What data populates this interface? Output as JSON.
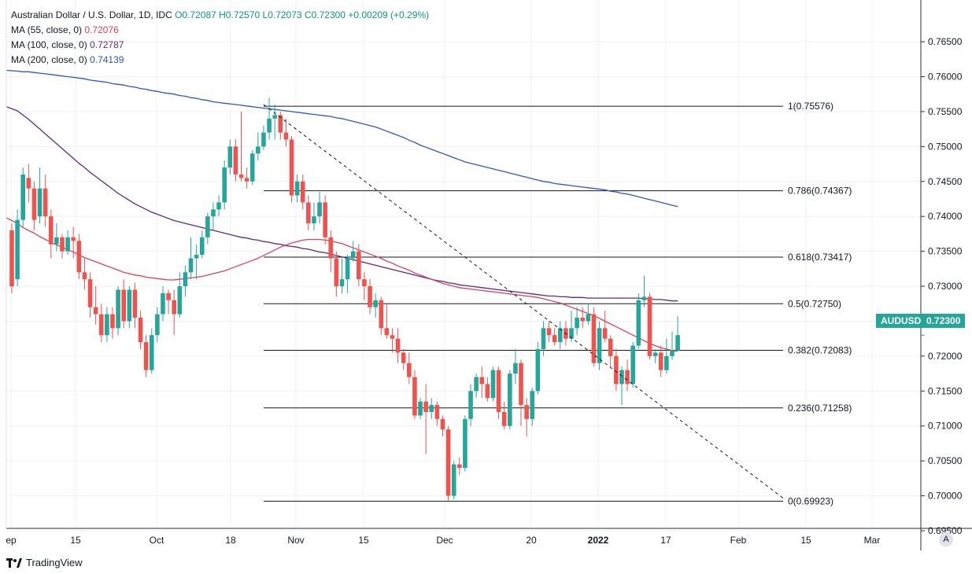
{
  "header": {
    "symbol": "Australian Dollar / U.S. Dollar, 1D, IDC",
    "open": "O0.72087",
    "high": "H0.72570",
    "low": "L0.72073",
    "close": "C0.72300",
    "change": "+0.00209 (+0.29%)"
  },
  "indicators": [
    {
      "label": "MA (55, close, 0)",
      "value": "0.72076",
      "color": "#e0405a"
    },
    {
      "label": "MA (100, close, 0)",
      "value": "0.72787",
      "color": "#5b2a86"
    },
    {
      "label": "MA (200, close, 0)",
      "value": "0.74139",
      "color": "#2f55c9"
    }
  ],
  "price_tag": {
    "symbol": "AUDUSD",
    "value": "0.72300"
  },
  "auto_button": "A",
  "branding": "TradingView",
  "colors": {
    "up": "#26a69a",
    "down": "#ef5350",
    "grid": "#eef0f4",
    "axis": "#787b86"
  },
  "chart_data": {
    "type": "candlestick",
    "title": "Australian Dollar / U.S. Dollar, 1D, IDC",
    "ylim": [
      0.692,
      0.769
    ],
    "y_ticks": [
      "0.76500",
      "0.76000",
      "0.75500",
      "0.75000",
      "0.74500",
      "0.74000",
      "0.73500",
      "0.73000",
      "0.72500",
      "0.72000",
      "0.71500",
      "0.71000",
      "0.70500",
      "0.70000",
      "0.69500"
    ],
    "x_ticks": [
      "ep",
      "15",
      "Oct",
      "18",
      "Nov",
      "15",
      "Dec",
      "20",
      "2022",
      "17",
      "Feb",
      "15",
      "Mar"
    ],
    "fib_levels": [
      {
        "label": "1(0.75576)",
        "value": 0.75576
      },
      {
        "label": "0.786(0.74367)",
        "value": 0.74367
      },
      {
        "label": "0.618(0.73417)",
        "value": 0.73417
      },
      {
        "label": "0.5(0.72750)",
        "value": 0.7275
      },
      {
        "label": "0.382(0.72083)",
        "value": 0.72083
      },
      {
        "label": "0.236(0.71258)",
        "value": 0.71258
      },
      {
        "label": "0(0.69923)",
        "value": 0.69923
      }
    ],
    "trendline": {
      "start": 0.756,
      "end": 0.6995
    },
    "candles": [
      [
        0.738,
        0.73,
        0.739,
        0.729
      ],
      [
        0.731,
        0.7395,
        0.741,
        0.73
      ],
      [
        0.7395,
        0.746,
        0.747,
        0.7385
      ],
      [
        0.7455,
        0.744,
        0.7475,
        0.742
      ],
      [
        0.744,
        0.7395,
        0.745,
        0.738
      ],
      [
        0.74,
        0.744,
        0.747,
        0.739
      ],
      [
        0.744,
        0.74,
        0.746,
        0.7385
      ],
      [
        0.74,
        0.736,
        0.741,
        0.734
      ],
      [
        0.736,
        0.737,
        0.739,
        0.735
      ],
      [
        0.737,
        0.735,
        0.7375,
        0.734
      ],
      [
        0.735,
        0.737,
        0.738,
        0.7345
      ],
      [
        0.737,
        0.7365,
        0.7385,
        0.734
      ],
      [
        0.7365,
        0.732,
        0.7375,
        0.731
      ],
      [
        0.732,
        0.731,
        0.734,
        0.7295
      ],
      [
        0.731,
        0.727,
        0.732,
        0.7255
      ],
      [
        0.727,
        0.726,
        0.73,
        0.7245
      ],
      [
        0.726,
        0.723,
        0.7275,
        0.722
      ],
      [
        0.723,
        0.726,
        0.727,
        0.722
      ],
      [
        0.726,
        0.724,
        0.727,
        0.7225
      ],
      [
        0.724,
        0.7295,
        0.73,
        0.723
      ],
      [
        0.7295,
        0.725,
        0.731,
        0.724
      ],
      [
        0.725,
        0.7295,
        0.73,
        0.724
      ],
      [
        0.7295,
        0.7255,
        0.7305,
        0.724
      ],
      [
        0.7255,
        0.722,
        0.7265,
        0.721
      ],
      [
        0.722,
        0.718,
        0.723,
        0.717
      ],
      [
        0.718,
        0.723,
        0.724,
        0.7175
      ],
      [
        0.723,
        0.726,
        0.727,
        0.722
      ],
      [
        0.726,
        0.729,
        0.73,
        0.725
      ],
      [
        0.729,
        0.728,
        0.7295,
        0.726
      ],
      [
        0.728,
        0.726,
        0.7295,
        0.723
      ],
      [
        0.726,
        0.73,
        0.732,
        0.7255
      ],
      [
        0.73,
        0.732,
        0.733,
        0.7285
      ],
      [
        0.732,
        0.734,
        0.737,
        0.731
      ],
      [
        0.734,
        0.7345,
        0.736,
        0.731
      ],
      [
        0.7345,
        0.737,
        0.738,
        0.734
      ],
      [
        0.737,
        0.74,
        0.7405,
        0.736
      ],
      [
        0.74,
        0.741,
        0.742,
        0.738
      ],
      [
        0.741,
        0.742,
        0.743,
        0.74
      ],
      [
        0.742,
        0.747,
        0.748,
        0.741
      ],
      [
        0.747,
        0.75,
        0.751,
        0.746
      ],
      [
        0.75,
        0.746,
        0.751,
        0.745
      ],
      [
        0.746,
        0.7455,
        0.755,
        0.745
      ],
      [
        0.7455,
        0.745,
        0.747,
        0.744
      ],
      [
        0.745,
        0.749,
        0.7495,
        0.7445
      ],
      [
        0.749,
        0.75,
        0.752,
        0.748
      ],
      [
        0.75,
        0.752,
        0.753,
        0.7495
      ],
      [
        0.752,
        0.754,
        0.757,
        0.751
      ],
      [
        0.754,
        0.7545,
        0.756,
        0.751
      ],
      [
        0.7545,
        0.752,
        0.755,
        0.751
      ],
      [
        0.752,
        0.751,
        0.754,
        0.75
      ],
      [
        0.751,
        0.743,
        0.7515,
        0.742
      ],
      [
        0.743,
        0.745,
        0.746,
        0.742
      ],
      [
        0.745,
        0.742,
        0.746,
        0.741
      ],
      [
        0.742,
        0.739,
        0.743,
        0.738
      ],
      [
        0.739,
        0.74,
        0.742,
        0.738
      ],
      [
        0.74,
        0.742,
        0.7435,
        0.739
      ],
      [
        0.742,
        0.737,
        0.743,
        0.736
      ],
      [
        0.737,
        0.734,
        0.738,
        0.732
      ],
      [
        0.734,
        0.73,
        0.735,
        0.7285
      ],
      [
        0.73,
        0.731,
        0.734,
        0.729
      ],
      [
        0.731,
        0.734,
        0.7345,
        0.729
      ],
      [
        0.734,
        0.735,
        0.7365,
        0.7335
      ],
      [
        0.735,
        0.731,
        0.736,
        0.73
      ],
      [
        0.731,
        0.73,
        0.732,
        0.728
      ],
      [
        0.73,
        0.727,
        0.731,
        0.726
      ],
      [
        0.727,
        0.728,
        0.729,
        0.7255
      ],
      [
        0.728,
        0.724,
        0.7285,
        0.723
      ],
      [
        0.724,
        0.723,
        0.7275,
        0.7225
      ],
      [
        0.723,
        0.7225,
        0.724,
        0.7205
      ],
      [
        0.7225,
        0.7205,
        0.724,
        0.719
      ],
      [
        0.7205,
        0.719,
        0.721,
        0.718
      ],
      [
        0.719,
        0.717,
        0.7205,
        0.716
      ],
      [
        0.717,
        0.7115,
        0.718,
        0.711
      ],
      [
        0.7115,
        0.7135,
        0.714,
        0.711
      ],
      [
        0.7135,
        0.712,
        0.716,
        0.706
      ],
      [
        0.712,
        0.713,
        0.714,
        0.711
      ],
      [
        0.713,
        0.711,
        0.7135,
        0.71
      ],
      [
        0.711,
        0.7095,
        0.7115,
        0.7085
      ],
      [
        0.7095,
        0.7,
        0.71,
        0.6992
      ],
      [
        0.7,
        0.7045,
        0.705,
        0.6995
      ],
      [
        0.7045,
        0.704,
        0.7055,
        0.703
      ],
      [
        0.704,
        0.711,
        0.7115,
        0.7035
      ],
      [
        0.711,
        0.715,
        0.716,
        0.71
      ],
      [
        0.715,
        0.717,
        0.7175,
        0.714
      ],
      [
        0.717,
        0.716,
        0.7185,
        0.714
      ],
      [
        0.716,
        0.714,
        0.717,
        0.7135
      ],
      [
        0.714,
        0.718,
        0.7185,
        0.7135
      ],
      [
        0.718,
        0.712,
        0.7185,
        0.711
      ],
      [
        0.712,
        0.71,
        0.7135,
        0.7095
      ],
      [
        0.71,
        0.7175,
        0.718,
        0.7095
      ],
      [
        0.7175,
        0.719,
        0.721,
        0.716
      ],
      [
        0.719,
        0.713,
        0.7195,
        0.71
      ],
      [
        0.713,
        0.711,
        0.714,
        0.7085
      ],
      [
        0.711,
        0.715,
        0.7155,
        0.71
      ],
      [
        0.715,
        0.721,
        0.722,
        0.7145
      ],
      [
        0.721,
        0.724,
        0.725,
        0.72
      ],
      [
        0.724,
        0.723,
        0.725,
        0.722
      ],
      [
        0.723,
        0.722,
        0.724,
        0.7215
      ],
      [
        0.722,
        0.724,
        0.725,
        0.721
      ],
      [
        0.724,
        0.7225,
        0.725,
        0.7215
      ],
      [
        0.7225,
        0.724,
        0.7265,
        0.722
      ],
      [
        0.724,
        0.7255,
        0.727,
        0.723
      ],
      [
        0.7255,
        0.725,
        0.727,
        0.724
      ],
      [
        0.725,
        0.726,
        0.7275,
        0.7245
      ],
      [
        0.726,
        0.719,
        0.727,
        0.7185
      ],
      [
        0.719,
        0.724,
        0.725,
        0.718
      ],
      [
        0.724,
        0.7225,
        0.7265,
        0.722
      ],
      [
        0.7225,
        0.72,
        0.723,
        0.7185
      ],
      [
        0.72,
        0.716,
        0.721,
        0.715
      ],
      [
        0.716,
        0.718,
        0.7185,
        0.713
      ],
      [
        0.718,
        0.716,
        0.7195,
        0.715
      ],
      [
        0.716,
        0.7215,
        0.722,
        0.7155
      ],
      [
        0.7215,
        0.728,
        0.729,
        0.721
      ],
      [
        0.728,
        0.7285,
        0.7315,
        0.727
      ],
      [
        0.7285,
        0.72,
        0.729,
        0.7195
      ],
      [
        0.72,
        0.7205,
        0.721,
        0.719
      ],
      [
        0.7205,
        0.718,
        0.7215,
        0.717
      ],
      [
        0.718,
        0.72,
        0.7225,
        0.7175
      ],
      [
        0.72,
        0.7208,
        0.7235,
        0.7195
      ],
      [
        0.7208,
        0.723,
        0.7257,
        0.7207
      ]
    ],
    "ma55": [
      0.7398,
      0.739,
      0.7384,
      0.738,
      0.7376,
      0.7371,
      0.7367,
      0.7363,
      0.7359,
      0.7356,
      0.7352,
      0.7349,
      0.7345,
      0.7341,
      0.7338,
      0.7335,
      0.7332,
      0.7329,
      0.7326,
      0.7323,
      0.732,
      0.7318,
      0.7316,
      0.7315,
      0.7313,
      0.7312,
      0.7311,
      0.731,
      0.7309,
      0.7309,
      0.731,
      0.7311,
      0.7312,
      0.7313,
      0.7314,
      0.7316,
      0.7318,
      0.732,
      0.7322,
      0.7325,
      0.7328,
      0.7331,
      0.7334,
      0.7337,
      0.734,
      0.7344,
      0.7348,
      0.7352,
      0.7356,
      0.7359,
      0.7362,
      0.7364,
      0.7366,
      0.7367,
      0.7367,
      0.7367,
      0.7366,
      0.7365,
      0.7363,
      0.7361,
      0.7358,
      0.7355,
      0.7352,
      0.7349,
      0.7346,
      0.7343,
      0.734,
      0.7336,
      0.7333,
      0.7329,
      0.7326,
      0.7323,
      0.7319,
      0.7316,
      0.7313,
      0.731,
      0.7307,
      0.7304,
      0.7302,
      0.73,
      0.7298,
      0.7297,
      0.7296,
      0.7295,
      0.7294,
      0.7293,
      0.7292,
      0.7291,
      0.729,
      0.7289,
      0.7288,
      0.7287,
      0.7286,
      0.7285,
      0.7284,
      0.7282,
      0.728,
      0.7278,
      0.7276,
      0.7273,
      0.727,
      0.7267,
      0.7264,
      0.7261,
      0.7258,
      0.7254,
      0.725,
      0.7246,
      0.7242,
      0.7238,
      0.7234,
      0.723,
      0.7226,
      0.7222,
      0.7218,
      0.7215,
      0.7212,
      0.721,
      0.7208,
      0.7207
    ],
    "ma100": [
      0.7557,
      0.7551,
      0.7545,
      0.7539,
      0.7532,
      0.7525,
      0.7518,
      0.7511,
      0.7504,
      0.7497,
      0.749,
      0.7483,
      0.7476,
      0.747,
      0.7463,
      0.7457,
      0.7451,
      0.7445,
      0.7439,
      0.7433,
      0.7428,
      0.7423,
      0.7418,
      0.7414,
      0.741,
      0.7406,
      0.7403,
      0.74,
      0.7397,
      0.7394,
      0.7392,
      0.739,
      0.7388,
      0.7386,
      0.7384,
      0.7382,
      0.738,
      0.7378,
      0.7376,
      0.7374,
      0.7372,
      0.737,
      0.7369,
      0.7367,
      0.7366,
      0.7364,
      0.7363,
      0.7361,
      0.736,
      0.7358,
      0.7357,
      0.7356,
      0.7354,
      0.7353,
      0.7351,
      0.7349,
      0.7348,
      0.7346,
      0.7344,
      0.7342,
      0.734,
      0.7338,
      0.7336,
      0.7334,
      0.7332,
      0.733,
      0.7328,
      0.7326,
      0.7324,
      0.7322,
      0.732,
      0.7318,
      0.7316,
      0.7314,
      0.7312,
      0.731,
      0.7308,
      0.7307,
      0.7305,
      0.7304,
      0.7302,
      0.7301,
      0.73,
      0.7299,
      0.7298,
      0.7297,
      0.7296,
      0.7295,
      0.7294,
      0.7293,
      0.7292,
      0.7291,
      0.729,
      0.7289,
      0.7288,
      0.7287,
      0.7286,
      0.7286,
      0.7285,
      0.7285,
      0.7284,
      0.7284,
      0.7284,
      0.7283,
      0.7283,
      0.7283,
      0.7283,
      0.7283,
      0.7283,
      0.7283,
      0.7283,
      0.7283,
      0.7283,
      0.7282,
      0.7282,
      0.7281,
      0.7281,
      0.728,
      0.7279,
      0.7279
    ],
    "ma200": [
      0.7609,
      0.7608,
      0.7607,
      0.7607,
      0.7606,
      0.7605,
      0.7604,
      0.7603,
      0.7602,
      0.7601,
      0.76,
      0.7599,
      0.7598,
      0.7597,
      0.7595,
      0.7594,
      0.7593,
      0.7592,
      0.759,
      0.7589,
      0.7588,
      0.7586,
      0.7585,
      0.7583,
      0.7582,
      0.758,
      0.7579,
      0.7577,
      0.7576,
      0.7575,
      0.7573,
      0.7572,
      0.757,
      0.7569,
      0.7567,
      0.7566,
      0.7564,
      0.7563,
      0.7562,
      0.7561,
      0.756,
      0.7559,
      0.7558,
      0.7557,
      0.7556,
      0.7555,
      0.7554,
      0.7553,
      0.7552,
      0.7551,
      0.755,
      0.7549,
      0.7548,
      0.7547,
      0.7546,
      0.7545,
      0.7544,
      0.7543,
      0.7541,
      0.754,
      0.7538,
      0.7536,
      0.7534,
      0.7532,
      0.753,
      0.7528,
      0.7525,
      0.7522,
      0.7519,
      0.7516,
      0.7513,
      0.7509,
      0.7506,
      0.7502,
      0.7499,
      0.7496,
      0.7493,
      0.749,
      0.7487,
      0.7484,
      0.7481,
      0.7478,
      0.7476,
      0.7474,
      0.7472,
      0.747,
      0.7468,
      0.7466,
      0.7464,
      0.7462,
      0.746,
      0.7458,
      0.7456,
      0.7454,
      0.7452,
      0.745,
      0.7449,
      0.7447,
      0.7446,
      0.7445,
      0.7444,
      0.7443,
      0.7442,
      0.7441,
      0.744,
      0.7439,
      0.7438,
      0.7436,
      0.7435,
      0.7433,
      0.7432,
      0.743,
      0.7428,
      0.7426,
      0.7424,
      0.7422,
      0.742,
      0.7418,
      0.7416,
      0.7414
    ]
  }
}
